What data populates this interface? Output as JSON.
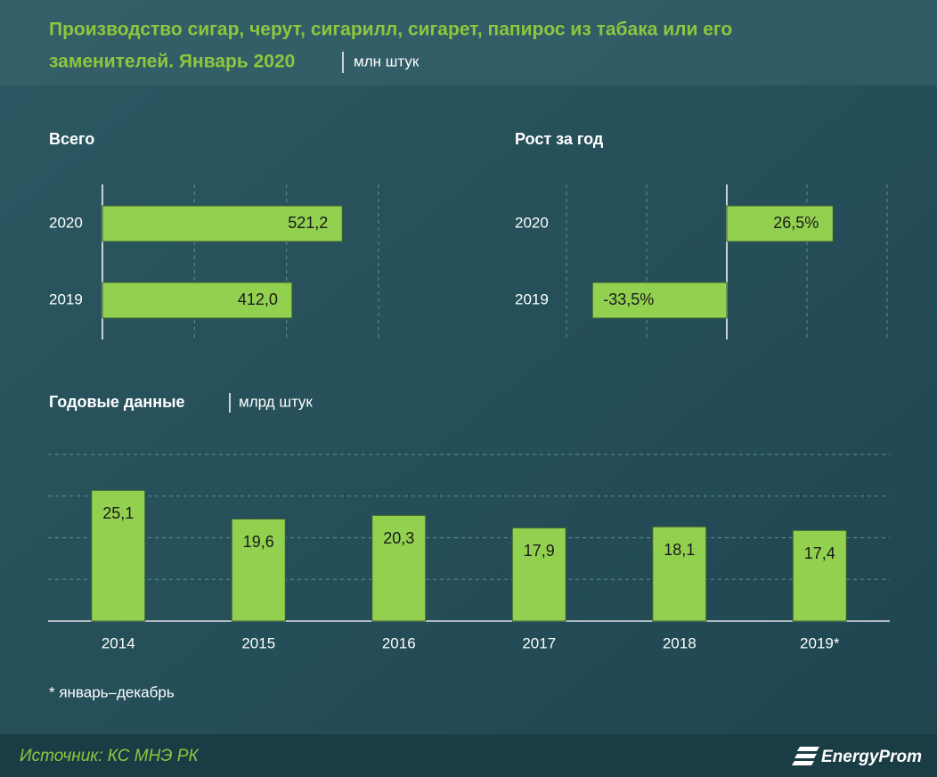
{
  "header": {
    "title_line1": "Производство сигар, черут, сигарилл, сигарет, папирос из табака или его",
    "title_line2": "заменителей. Январь 2020",
    "unit": "млн штук"
  },
  "chart_data": [
    {
      "type": "bar",
      "orientation": "horizontal",
      "title": "Всего",
      "categories": [
        "2020",
        "2019"
      ],
      "values": [
        521.2,
        412.0
      ],
      "value_labels": [
        "521,2",
        "412,0"
      ],
      "xlim": [
        0,
        600
      ],
      "xticks": [
        0,
        200,
        400,
        600
      ],
      "grid": true,
      "color": "#92d050"
    },
    {
      "type": "bar",
      "orientation": "horizontal",
      "title": "Рост за год",
      "categories": [
        "2020",
        "2019"
      ],
      "values": [
        26.5,
        -33.5
      ],
      "value_labels": [
        "26,5%",
        "-33,5%"
      ],
      "xlim": [
        -40,
        40
      ],
      "xticks": [
        -40,
        -20,
        0,
        20,
        40
      ],
      "grid": true,
      "color": "#92d050"
    },
    {
      "type": "bar",
      "orientation": "vertical",
      "title": "Годовые данные",
      "unit": "млрд штук",
      "categories": [
        "2014",
        "2015",
        "2016",
        "2017",
        "2018",
        "2019*"
      ],
      "values": [
        25.1,
        19.6,
        20.3,
        17.9,
        18.1,
        17.4
      ],
      "value_labels": [
        "25,1",
        "19,6",
        "20,3",
        "17,9",
        "18,1",
        "17,4"
      ],
      "ylim": [
        0,
        32
      ],
      "yticks": [
        0,
        8,
        16,
        24,
        32
      ],
      "grid": true,
      "color": "#92d050"
    }
  ],
  "footnote": "* январь–декабрь",
  "footer": {
    "source": "Источник: КС МНЭ РК",
    "logo": "EnergyProm"
  }
}
